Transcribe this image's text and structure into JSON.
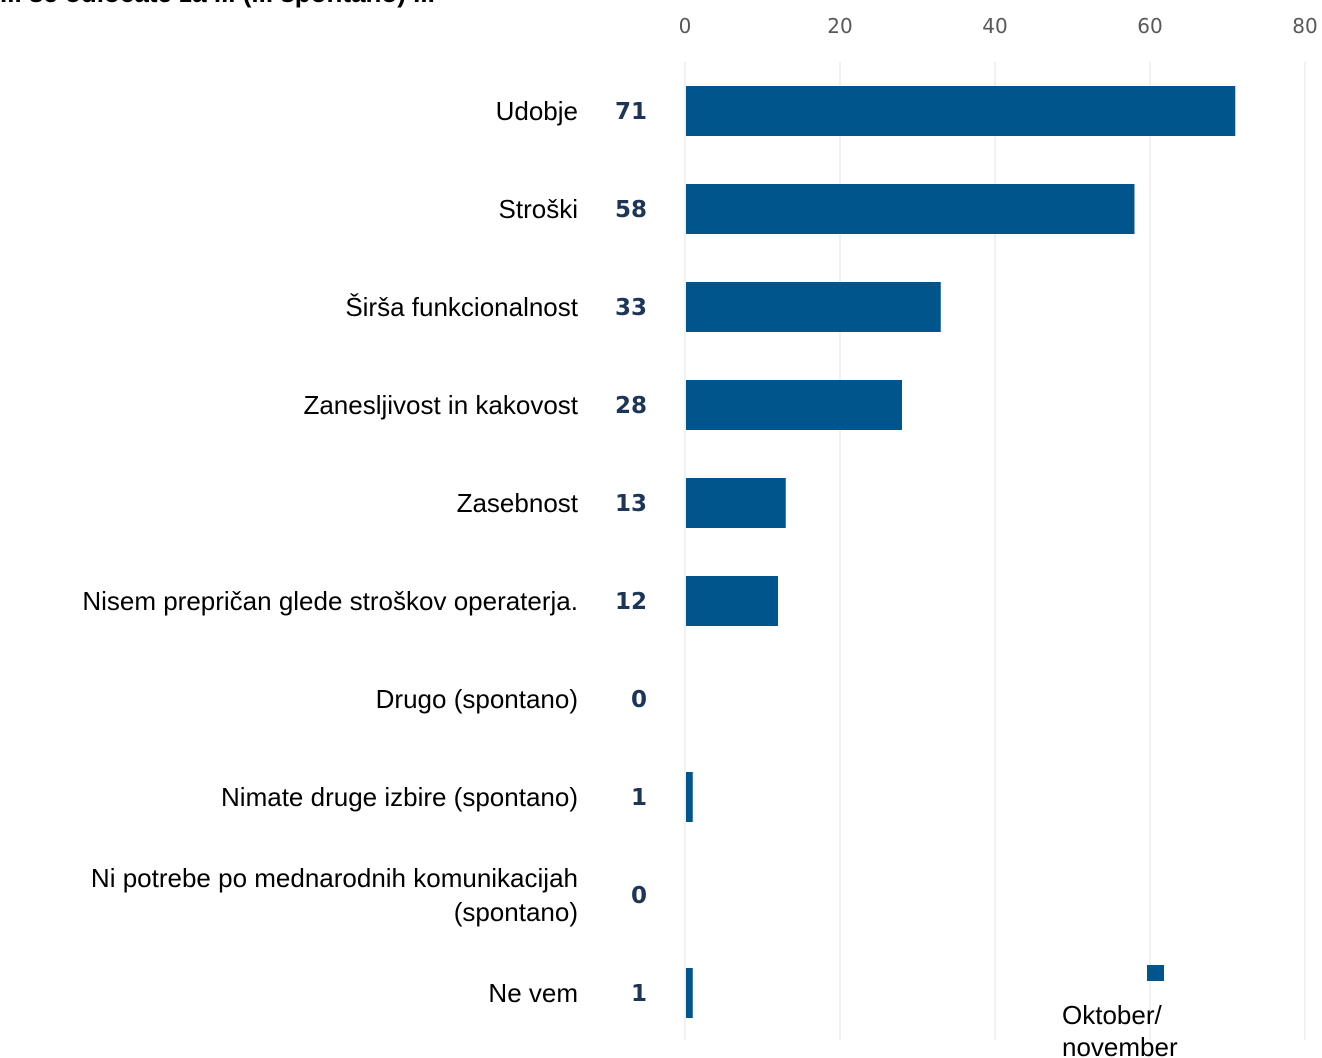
{
  "chart_data": {
    "type": "bar",
    "orientation": "horizontal",
    "title": "... se odločate za ... (... spontano) ...",
    "xlim": [
      0,
      80
    ],
    "x_ticks": [
      "0",
      "20",
      "40",
      "60",
      "80"
    ],
    "grid": true,
    "legend_position": "bottom-right",
    "categories": [
      [
        "Udobje"
      ],
      [
        "Stroški"
      ],
      [
        "Širša funkcionalnost"
      ],
      [
        "Zanesljivost in kakovost"
      ],
      [
        "Zasebnost"
      ],
      [
        "Nisem prepričan glede stroškov operaterja."
      ],
      [
        "Drugo (spontano)"
      ],
      [
        "Nimate druge izbire (spontano)"
      ],
      [
        "Ni potrebe po mednarodnih komunikacijah",
        "(spontano)"
      ],
      [
        "Ne vem"
      ]
    ],
    "series": [
      {
        "name": "Oktober/ november",
        "color": "#00558c",
        "values": [
          71,
          58,
          33,
          28,
          13,
          12,
          0,
          1,
          0,
          1
        ]
      }
    ],
    "legend_lines": [
      "Oktober/",
      "november"
    ]
  }
}
